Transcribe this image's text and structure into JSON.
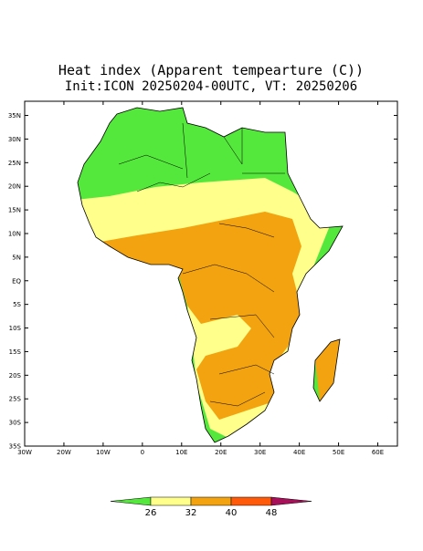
{
  "map": {
    "title": "Heat index (Apparent tempearture (C))",
    "subtitle": "Init:ICON 20250204-00UTC, VT: 20250206",
    "lat_ticks": [
      {
        "value": 35,
        "label": "35N"
      },
      {
        "value": 30,
        "label": "30N"
      },
      {
        "value": 25,
        "label": "25N"
      },
      {
        "value": 20,
        "label": "20N"
      },
      {
        "value": 15,
        "label": "15N"
      },
      {
        "value": 10,
        "label": "10N"
      },
      {
        "value": 5,
        "label": "5N"
      },
      {
        "value": 0,
        "label": "EQ"
      },
      {
        "value": -5,
        "label": "5S"
      },
      {
        "value": -10,
        "label": "10S"
      },
      {
        "value": -15,
        "label": "15S"
      },
      {
        "value": -20,
        "label": "20S"
      },
      {
        "value": -25,
        "label": "25S"
      },
      {
        "value": -30,
        "label": "30S"
      },
      {
        "value": -35,
        "label": "35S"
      }
    ],
    "lon_ticks": [
      {
        "value": -30,
        "label": "30W"
      },
      {
        "value": -20,
        "label": "20W"
      },
      {
        "value": -10,
        "label": "10W"
      },
      0,
      {
        "value": 10,
        "label": "10E"
      },
      {
        "value": 20,
        "label": "20E"
      },
      {
        "value": 30,
        "label": "30E"
      },
      {
        "value": 40,
        "label": "40E"
      },
      {
        "value": 50,
        "label": "50E"
      },
      {
        "value": 60,
        "label": "60E"
      }
    ],
    "lat_range": [
      -35,
      38
    ],
    "lon_range": [
      -30,
      65
    ],
    "colorbar": {
      "levels": [
        26,
        32,
        40,
        48
      ],
      "colors": [
        "#55e83c",
        "#ffff8c",
        "#f2a30f",
        "#ff5a0a",
        "#a8105a"
      ]
    }
  }
}
